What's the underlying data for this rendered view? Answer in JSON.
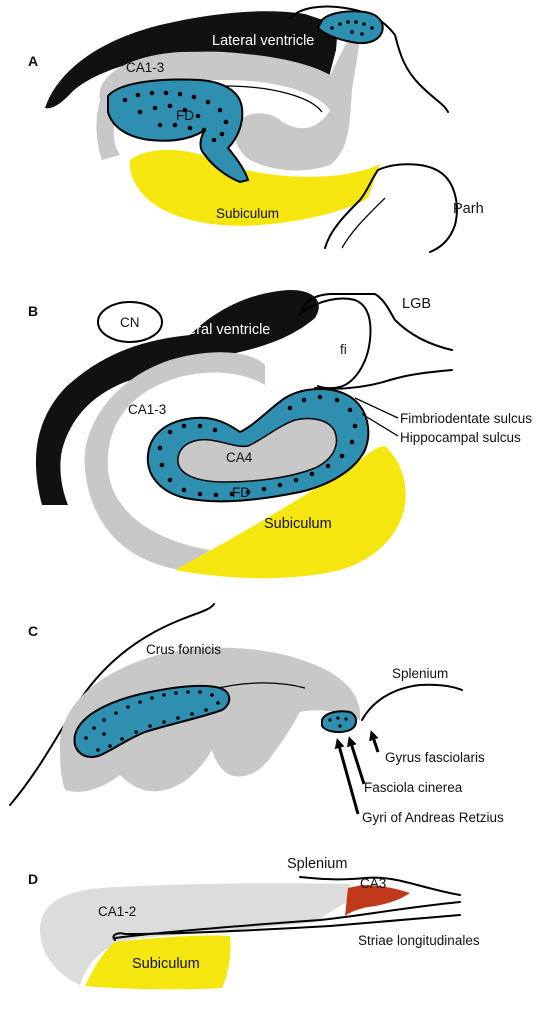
{
  "colors": {
    "gray": "#c8c8c8",
    "light_gray": "#dcdcdc",
    "blue": "#2f8fb0",
    "yellow": "#f5e60f",
    "black": "#111111",
    "red": "#c0391b"
  },
  "panels": {
    "A": {
      "letter": "A",
      "labels": {
        "lateral_ventricle": "Lateral ventricle",
        "ca1_3": "CA1-3",
        "fd": "FD",
        "subiculum": "Subiculum",
        "parh": "Parh"
      }
    },
    "B": {
      "letter": "B",
      "labels": {
        "cn": "CN",
        "lateral_ventricle": "Lateral ventricle",
        "lgb": "LGB",
        "fi": "fi",
        "ca1_3": "CA1-3",
        "ca4": "CA4",
        "fd": "FD",
        "subiculum": "Subiculum",
        "fimbriodentate_sulcus": "Fimbriodentate sulcus",
        "hippocampal_sulcus": "Hippocampal sulcus"
      }
    },
    "C": {
      "letter": "C",
      "labels": {
        "crus_fornicis": "Crus fornicis",
        "splenium": "Splenium",
        "gyrus_fasciolaris": "Gyrus fasciolaris",
        "fasciola_cinerea": "Fasciola cinerea",
        "gyri_andreas_retzius": "Gyri of Andreas Retzius"
      }
    },
    "D": {
      "letter": "D",
      "labels": {
        "splenium": "Splenium",
        "ca3": "CA3",
        "ca1_2": "CA1-2",
        "striae_longitudinales": "Striae longitudinales",
        "subiculum": "Subiculum"
      }
    }
  }
}
